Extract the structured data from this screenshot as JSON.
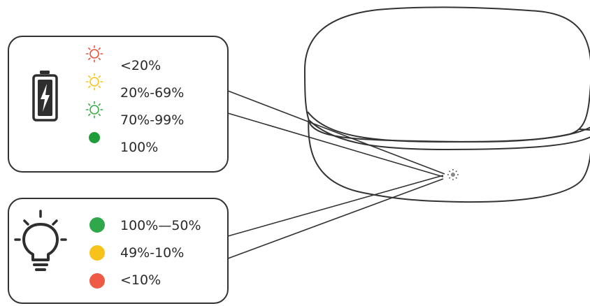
{
  "charging_panel": {
    "icon": "battery-charging-icon",
    "rows": [
      {
        "label": "<20%",
        "indicator": "blinking",
        "color": "#e8533f"
      },
      {
        "label": "20%-69%",
        "indicator": "blinking",
        "color": "#f5c518"
      },
      {
        "label": "70%-99%",
        "indicator": "blinking",
        "color": "#3aaa4a"
      },
      {
        "label": "100%",
        "indicator": "solid",
        "color": "#1f9d3a"
      }
    ]
  },
  "battery_panel": {
    "icon": "light-bulb-icon",
    "rows": [
      {
        "label": "100%—50%",
        "indicator": "solid",
        "color": "#2ea84a"
      },
      {
        "label": "49%-10%",
        "indicator": "solid",
        "color": "#f7c21b"
      },
      {
        "label": "<10%",
        "indicator": "solid",
        "color": "#ee5a43"
      }
    ]
  },
  "device": {
    "name": "charging-case",
    "indicator_icon": "led-indicator-icon"
  }
}
